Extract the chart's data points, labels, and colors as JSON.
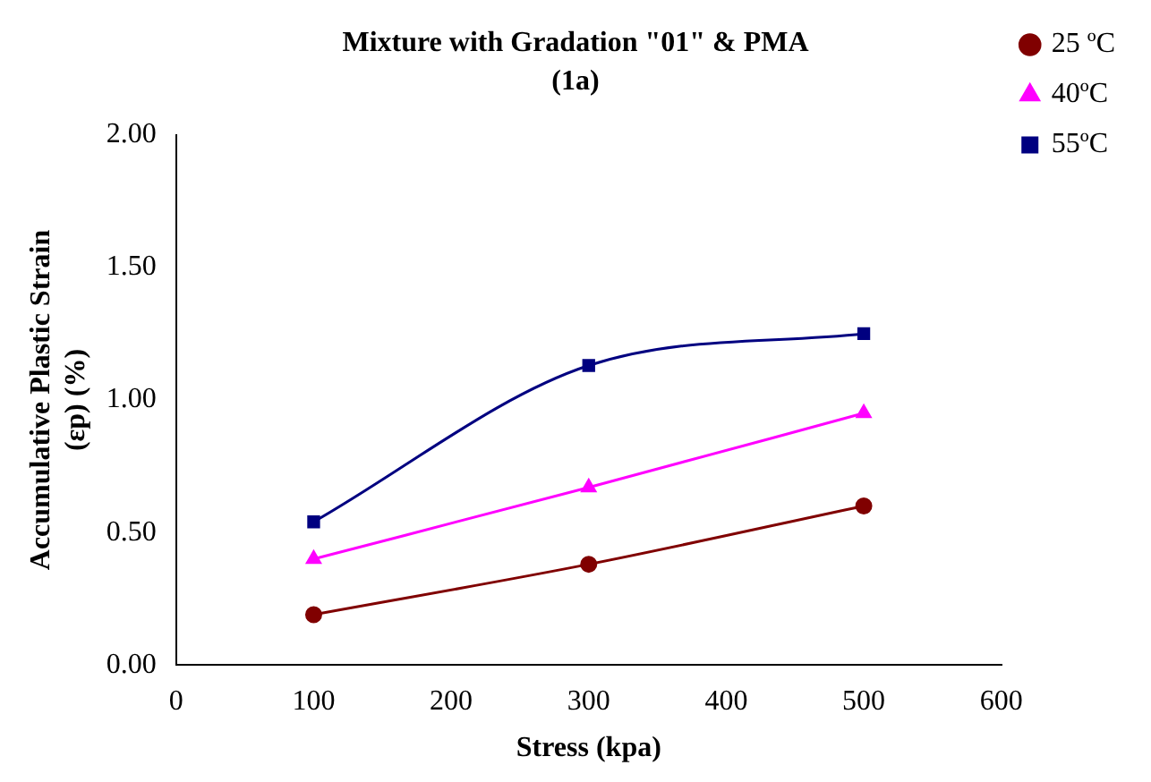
{
  "chart_data": {
    "type": "line",
    "title": "Mixture with Gradation \"01\" & PMA",
    "subtitle": "(1a)",
    "xlabel": "Stress (kpa)",
    "ylabel": "Accumulative Plastic Strain (εp) (%)",
    "x": [
      100,
      300,
      500
    ],
    "series": [
      {
        "name": "25 ºC",
        "color": "#800000",
        "marker": "circle",
        "values": [
          0.19,
          0.38,
          0.6
        ]
      },
      {
        "name": "40ºC",
        "color": "#ff00ff",
        "marker": "triangle",
        "values": [
          0.4,
          0.67,
          0.95
        ]
      },
      {
        "name": "55ºC",
        "color": "#000080",
        "marker": "square",
        "values": [
          0.54,
          1.13,
          1.25
        ]
      }
    ],
    "xlim": [
      0,
      600
    ],
    "xticks": [
      0,
      100,
      200,
      300,
      400,
      500,
      600
    ],
    "ylim": [
      0,
      2
    ],
    "yticks": [
      {
        "value": 0,
        "label": "0.00"
      },
      {
        "value": 0.5,
        "label": "0.50"
      },
      {
        "value": 1,
        "label": "1.00"
      },
      {
        "value": 1.5,
        "label": "1.50"
      },
      {
        "value": 2,
        "label": "2.00"
      }
    ],
    "grid": false,
    "legend": "right",
    "line_style": "solid"
  }
}
